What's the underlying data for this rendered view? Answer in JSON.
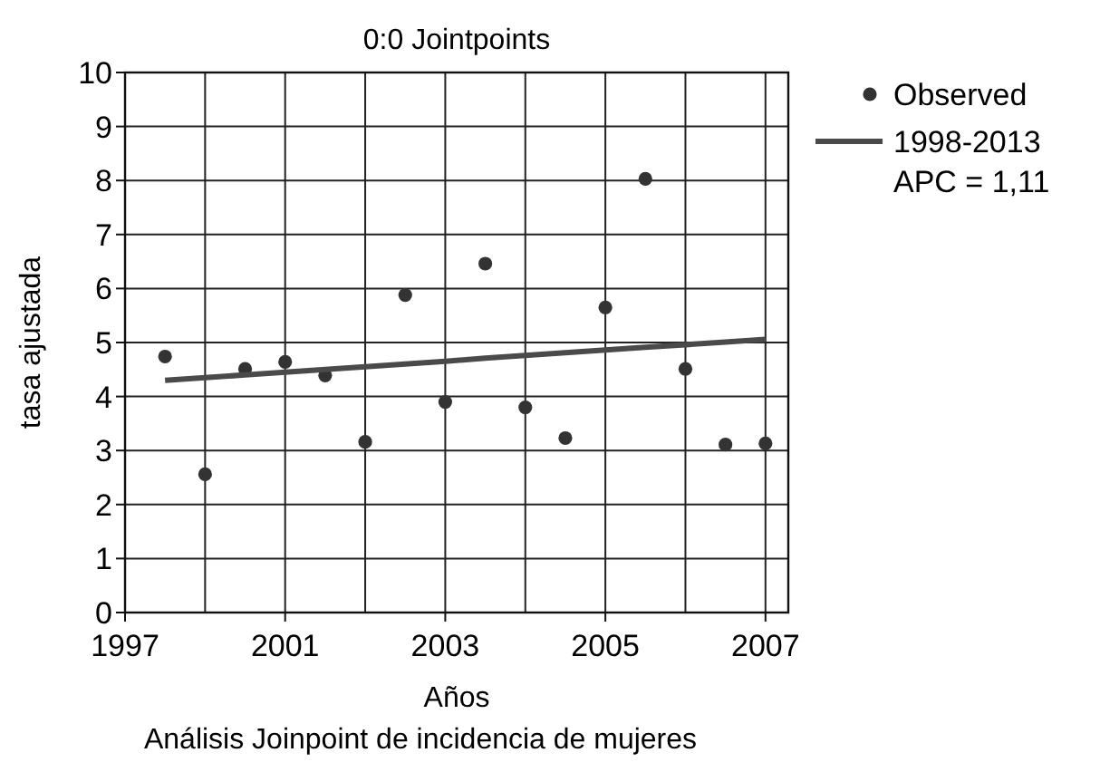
{
  "chart_data": {
    "type": "scatter",
    "title": "0:0 Jointpoints",
    "xlabel": "Años",
    "ylabel": "tasa ajustada",
    "annotations": [
      "Análisis Joinpoint de incidencia de mujeres"
    ],
    "categories": [
      "1997",
      null,
      null,
      null,
      "2001",
      null,
      null,
      null,
      "2003",
      null,
      null,
      null,
      "2005",
      null,
      null,
      null,
      "2007"
    ],
    "ylim": [
      0,
      10
    ],
    "yticks": [
      0,
      1,
      2,
      3,
      4,
      5,
      6,
      7,
      8,
      9,
      10
    ],
    "grid": true,
    "legend": "right",
    "series": [
      {
        "name": "Observed",
        "color": "#333333",
        "marker": "circle",
        "values": [
          null,
          4.74,
          2.56,
          4.51,
          4.64,
          4.39,
          3.16,
          5.88,
          3.9,
          6.46,
          3.8,
          3.23,
          5.65,
          8.03,
          4.51,
          3.11,
          3.13
        ]
      },
      {
        "name": "1998-2013\nAPC = 1,11",
        "type": "line",
        "color": "#4a4a4a",
        "line_style": "solid",
        "marker": "none",
        "values": [
          null,
          4.3,
          4.35,
          4.4,
          4.45,
          4.5,
          4.55,
          4.6,
          4.65,
          4.71,
          4.76,
          4.81,
          4.86,
          4.91,
          4.96,
          5.01,
          5.06
        ]
      }
    ]
  }
}
